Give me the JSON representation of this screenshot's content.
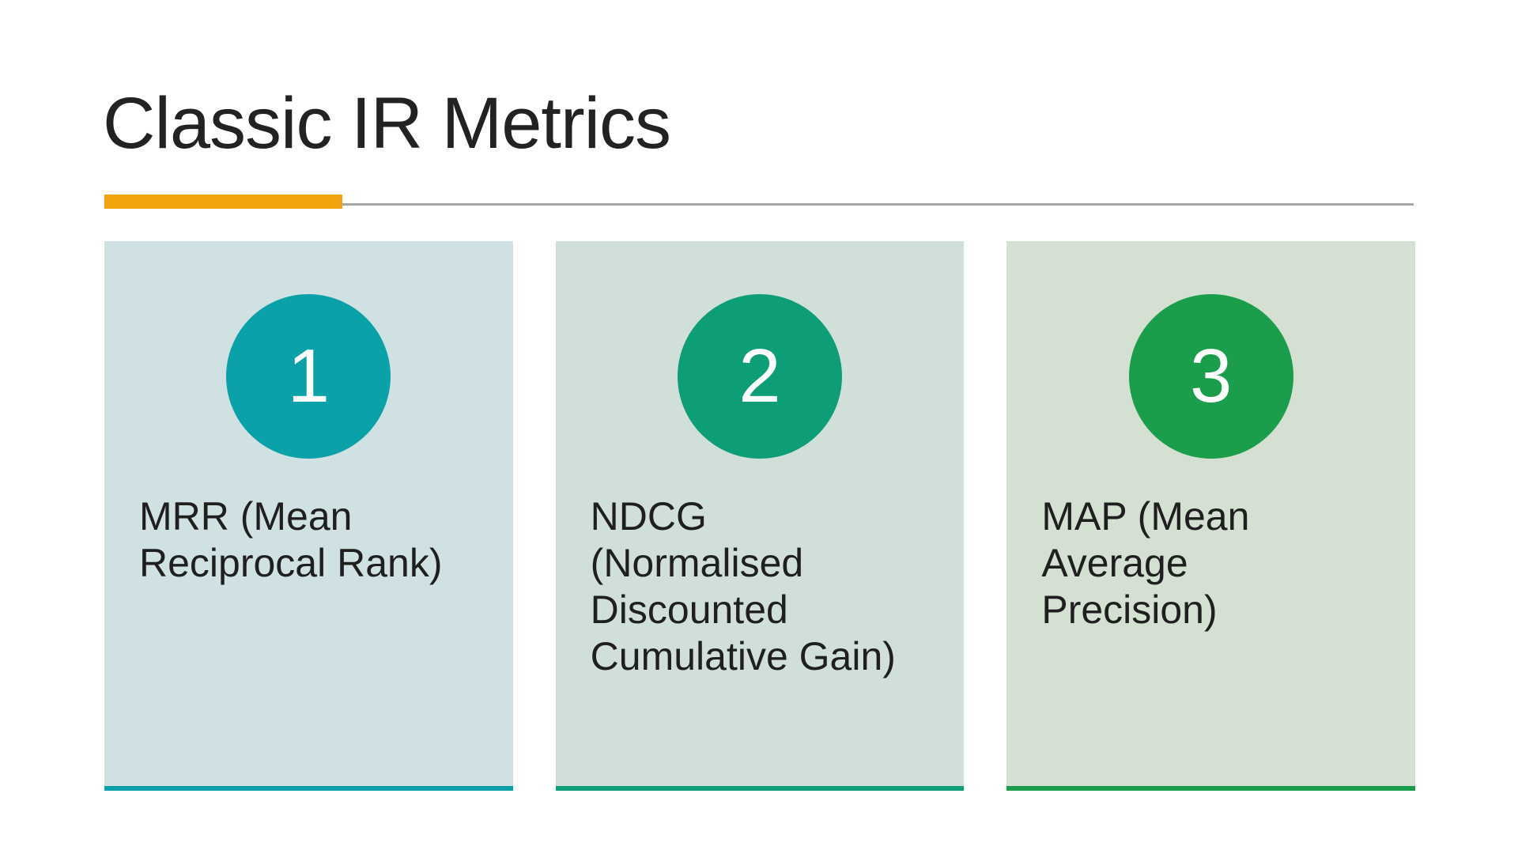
{
  "slide": {
    "title": "Classic IR Metrics",
    "accent_bar_color": "#F0A30A",
    "rule_color": "#A6A6A6",
    "background_color": "#FFFFFF",
    "title_color": "#222222",
    "body_text_color": "#1F1F1F"
  },
  "cards": [
    {
      "number": "1",
      "label": "MRR (Mean\nReciprocal Rank)",
      "circle_color": "#0BA1A8",
      "bg_color": "#D0E1E3",
      "underline_color": "#0BA1A8"
    },
    {
      "number": "2",
      "label": "NDCG\n(Normalised\nDiscounted\nCumulative Gain)",
      "circle_color": "#0E9E77",
      "bg_color": "#D0E0D9",
      "underline_color": "#0E9E77"
    },
    {
      "number": "3",
      "label": "MAP (Mean\nAverage\nPrecision)",
      "circle_color": "#1A9E4B",
      "bg_color": "#D3E0D2",
      "underline_color": "#1A9E4B"
    }
  ]
}
